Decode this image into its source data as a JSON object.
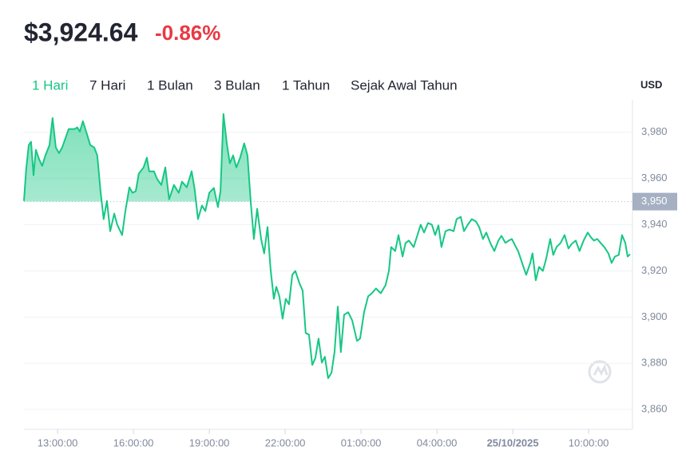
{
  "header": {
    "price": "$3,924.64",
    "change": "-0.86%"
  },
  "tabs": [
    "1 Hari",
    "7 Hari",
    "1 Bulan",
    "3 Bulan",
    "1 Tahun",
    "Sejak Awal Tahun"
  ],
  "chart_data": {
    "type": "line",
    "currency": "USD",
    "color": "#16c784",
    "xlim": [
      11.67,
      35.67
    ],
    "ylim": [
      3851.4,
      3994.1
    ],
    "xticks": [
      {
        "value": 13,
        "label": "13:00:00"
      },
      {
        "value": 16,
        "label": "16:00:00"
      },
      {
        "value": 19,
        "label": "19:00:00"
      },
      {
        "value": 22,
        "label": "22:00:00"
      },
      {
        "value": 25,
        "label": "01:00:00"
      },
      {
        "value": 28,
        "label": "04:00:00"
      },
      {
        "value": 31,
        "label": "25/10/2025"
      },
      {
        "value": 34,
        "label": "10:00:00"
      }
    ],
    "yticks": [
      {
        "value": 3860,
        "label": "3,860"
      },
      {
        "value": 3880,
        "label": "3,880"
      },
      {
        "value": 3900,
        "label": "3,900"
      },
      {
        "value": 3920,
        "label": "3,920"
      },
      {
        "value": 3940,
        "label": "3,940"
      },
      {
        "value": 3960,
        "label": "3,960"
      },
      {
        "value": 3980,
        "label": "3,980"
      }
    ],
    "baseline": {
      "value": 3950,
      "label": "3,950"
    },
    "grid": true,
    "x": [
      11.67,
      11.76,
      11.86,
      11.95,
      12.05,
      12.14,
      12.27,
      12.39,
      12.52,
      12.68,
      12.8,
      12.93,
      13.06,
      13.18,
      13.44,
      13.66,
      13.78,
      13.88,
      14.0,
      14.13,
      14.29,
      14.45,
      14.57,
      14.7,
      14.82,
      14.95,
      15.08,
      15.24,
      15.36,
      15.55,
      15.68,
      15.84,
      15.96,
      16.09,
      16.21,
      16.4,
      16.53,
      16.62,
      16.81,
      16.94,
      17.1,
      17.26,
      17.41,
      17.6,
      17.79,
      17.92,
      18.11,
      18.3,
      18.42,
      18.55,
      18.71,
      18.84,
      19.0,
      19.18,
      19.34,
      19.44,
      19.56,
      19.69,
      19.81,
      19.94,
      20.07,
      20.22,
      20.38,
      20.51,
      20.64,
      20.76,
      20.89,
      21.05,
      21.17,
      21.3,
      21.42,
      21.55,
      21.65,
      21.77,
      21.9,
      22.02,
      22.15,
      22.28,
      22.4,
      22.56,
      22.69,
      22.81,
      22.94,
      23.07,
      23.19,
      23.32,
      23.45,
      23.57,
      23.7,
      23.83,
      23.95,
      24.08,
      24.2,
      24.33,
      24.49,
      24.65,
      24.84,
      24.96,
      25.12,
      25.28,
      25.43,
      25.59,
      25.78,
      25.97,
      26.1,
      26.19,
      26.35,
      26.48,
      26.64,
      26.76,
      26.89,
      27.08,
      27.2,
      27.36,
      27.49,
      27.65,
      27.8,
      27.93,
      28.06,
      28.18,
      28.34,
      28.5,
      28.66,
      28.78,
      28.94,
      29.07,
      29.22,
      29.38,
      29.54,
      29.67,
      29.82,
      29.95,
      30.11,
      30.27,
      30.43,
      30.55,
      30.71,
      30.84,
      30.96,
      31.09,
      31.21,
      31.37,
      31.53,
      31.69,
      31.78,
      31.91,
      32.04,
      32.19,
      32.32,
      32.48,
      32.6,
      32.73,
      32.89,
      33.05,
      33.2,
      33.33,
      33.49,
      33.64,
      33.8,
      33.96,
      34.09,
      34.21,
      34.34,
      34.47,
      34.62,
      34.78,
      34.91,
      35.04,
      35.19,
      35.32,
      35.45,
      35.54,
      35.64
    ],
    "values": [
      3950.3,
      3964.1,
      3974.5,
      3975.9,
      3961.4,
      3972.4,
      3968.3,
      3965.5,
      3970.0,
      3974.5,
      3986.2,
      3973.4,
      3971.0,
      3973.4,
      3981.4,
      3981.4,
      3982.1,
      3980.3,
      3984.8,
      3980.3,
      3974.5,
      3973.4,
      3970.0,
      3954.5,
      3942.4,
      3950.3,
      3937.2,
      3944.8,
      3940.0,
      3935.5,
      3945.9,
      3956.2,
      3953.8,
      3954.5,
      3962.1,
      3964.8,
      3969.0,
      3963.1,
      3963.1,
      3959.7,
      3957.2,
      3964.8,
      3951.0,
      3957.2,
      3953.8,
      3958.6,
      3956.2,
      3963.1,
      3955.2,
      3942.4,
      3948.3,
      3945.9,
      3953.8,
      3955.9,
      3947.6,
      3954.5,
      3987.9,
      3975.2,
      3966.6,
      3970.0,
      3964.8,
      3969.0,
      3975.2,
      3970.0,
      3949.3,
      3933.8,
      3946.9,
      3933.8,
      3927.6,
      3939.0,
      3920.7,
      3907.9,
      3913.1,
      3909.0,
      3899.3,
      3907.9,
      3905.5,
      3918.3,
      3920.0,
      3914.8,
      3911.4,
      3893.1,
      3892.4,
      3879.3,
      3882.1,
      3890.7,
      3880.3,
      3882.8,
      3873.5,
      3875.9,
      3884.8,
      3904.5,
      3884.8,
      3901.0,
      3902.1,
      3898.6,
      3889.7,
      3890.7,
      3902.1,
      3909.0,
      3910.3,
      3912.4,
      3910.3,
      3913.8,
      3920.0,
      3930.3,
      3928.6,
      3935.5,
      3926.2,
      3932.1,
      3933.1,
      3930.3,
      3934.5,
      3940.0,
      3936.6,
      3940.7,
      3940.0,
      3935.5,
      3939.7,
      3930.3,
      3937.2,
      3937.9,
      3937.2,
      3942.4,
      3943.4,
      3937.2,
      3940.0,
      3942.4,
      3941.4,
      3939.0,
      3933.8,
      3936.6,
      3932.1,
      3928.6,
      3933.1,
      3935.2,
      3932.1,
      3933.1,
      3933.8,
      3931.0,
      3928.6,
      3923.4,
      3918.3,
      3923.4,
      3927.6,
      3915.9,
      3921.7,
      3920.0,
      3925.2,
      3933.8,
      3926.9,
      3930.3,
      3932.1,
      3935.5,
      3929.7,
      3931.7,
      3933.1,
      3928.6,
      3933.1,
      3936.6,
      3934.5,
      3933.1,
      3933.8,
      3932.1,
      3930.3,
      3927.6,
      3923.4,
      3926.2,
      3926.9,
      3935.5,
      3932.1,
      3926.2,
      3927.2
    ]
  }
}
